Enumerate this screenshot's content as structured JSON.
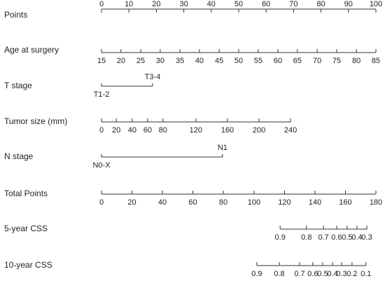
{
  "chart_data": {
    "type": "nomogram",
    "points_lim": [
      0,
      100
    ],
    "rows": [
      {
        "name": "Points",
        "label_side": "above",
        "labels": [
          0,
          10,
          20,
          30,
          40,
          50,
          60,
          70,
          80,
          90,
          100
        ],
        "points": [
          0,
          10,
          20,
          30,
          40,
          50,
          60,
          70,
          80,
          90,
          100
        ]
      },
      {
        "name": "Age at surgery",
        "label_side": "below",
        "labels": [
          15,
          20,
          25,
          30,
          35,
          40,
          45,
          50,
          55,
          60,
          65,
          70,
          75,
          80,
          85
        ],
        "points": [
          0,
          7.1,
          14.3,
          21.4,
          28.6,
          35.7,
          42.9,
          50,
          57.1,
          64.3,
          71.4,
          78.6,
          85.7,
          92.9,
          100
        ]
      },
      {
        "name": "T stage",
        "categories": [
          "T1-2",
          "T3-4"
        ],
        "points": [
          0,
          18.6
        ]
      },
      {
        "name": "Tumor size (mm)",
        "label_side": "below",
        "labels": [
          0,
          20,
          40,
          60,
          80,
          120,
          160,
          200,
          240
        ],
        "points": [
          0,
          5.4,
          11.2,
          16.8,
          22.4,
          34.4,
          45.9,
          57.4,
          68.9
        ]
      },
      {
        "name": "N stage",
        "categories": [
          "N0-X",
          "N1"
        ],
        "points": [
          0,
          44.1
        ]
      },
      {
        "name": "Total Points",
        "label_side": "below",
        "labels": [
          0,
          20,
          40,
          60,
          80,
          100,
          120,
          140,
          160,
          180
        ],
        "points": [
          0,
          11.1,
          22.2,
          33.3,
          44.4,
          55.6,
          66.7,
          77.8,
          88.9,
          100
        ]
      },
      {
        "name": "5-year CSS",
        "label_side": "below",
        "labels": [
          0.9,
          0.8,
          0.7,
          0.6,
          0.5,
          0.4,
          0.3
        ],
        "points": [
          65.1,
          74.7,
          80.9,
          85.7,
          89.5,
          93.1,
          96.7
        ]
      },
      {
        "name": "10-year CSS",
        "label_side": "below",
        "labels": [
          0.9,
          0.8,
          0.7,
          0.6,
          0.5,
          0.4,
          0.3,
          0.2,
          0.1
        ],
        "points": [
          56.6,
          64.8,
          72.2,
          77.0,
          80.6,
          84.2,
          87.5,
          91.3,
          96.4
        ]
      }
    ]
  }
}
